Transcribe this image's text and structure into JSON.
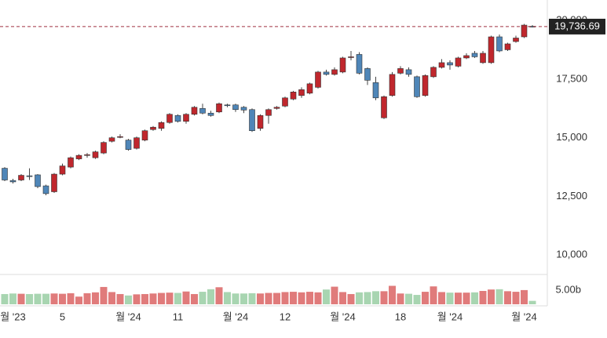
{
  "chart_data": {
    "type": "candlestick",
    "categories": [
      null,
      "월 '23",
      null,
      null,
      null,
      null,
      null,
      "5",
      null,
      null,
      null,
      null,
      null,
      null,
      null,
      "월 '24",
      null,
      null,
      null,
      null,
      null,
      "11",
      null,
      null,
      null,
      null,
      null,
      null,
      "월 '24",
      null,
      null,
      null,
      null,
      null,
      "12",
      null,
      null,
      null,
      null,
      null,
      null,
      "월 '24",
      null,
      null,
      null,
      null,
      null,
      null,
      "18",
      null,
      null,
      null,
      null,
      null,
      "월 '24",
      null,
      null,
      null,
      null,
      null,
      null,
      null,
      null,
      "월 '24",
      null
    ],
    "open": [
      13700,
      13180,
      13200,
      13380,
      13420,
      12950,
      12700,
      13450,
      13750,
      14100,
      14250,
      14150,
      14350,
      14850,
      15020,
      14900,
      14550,
      14900,
      15350,
      15400,
      15650,
      15950,
      15700,
      16000,
      16250,
      16050,
      16100,
      16400,
      16400,
      16300,
      16200,
      15400,
      15950,
      16250,
      16350,
      16650,
      16800,
      16900,
      17150,
      17800,
      17700,
      17800,
      18450,
      18550,
      17950,
      17350,
      15850,
      16800,
      17750,
      17900,
      17600,
      16800,
      17600,
      18000,
      18200,
      18050,
      18400,
      18600,
      18200,
      18200,
      19300,
      18750,
      19100,
      19300,
      19750
    ],
    "high": [
      13750,
      13250,
      13450,
      13700,
      13450,
      13000,
      13500,
      13900,
      14200,
      14300,
      14350,
      14450,
      14850,
      15050,
      15150,
      14950,
      15050,
      15350,
      15500,
      15700,
      16050,
      16000,
      16050,
      16350,
      16450,
      16150,
      16500,
      16450,
      16450,
      16350,
      16250,
      16000,
      16250,
      16350,
      16750,
      17000,
      17150,
      17350,
      17850,
      17900,
      18000,
      18450,
      18700,
      18650,
      18000,
      17600,
      16800,
      17800,
      18050,
      18000,
      17650,
      17700,
      18050,
      18350,
      18300,
      18450,
      18600,
      18700,
      18700,
      19350,
      19400,
      19050,
      19350,
      19850,
      19800
    ],
    "low": [
      13150,
      13050,
      13150,
      13200,
      12850,
      12550,
      12650,
      13400,
      13700,
      14050,
      14150,
      14100,
      14300,
      14800,
      14980,
      14450,
      14500,
      14850,
      15300,
      15300,
      15600,
      15650,
      15600,
      15950,
      16000,
      15900,
      16050,
      16300,
      16100,
      16050,
      15250,
      15300,
      15600,
      16200,
      16300,
      16600,
      16700,
      16850,
      17100,
      17650,
      17650,
      17750,
      18300,
      17700,
      17250,
      16600,
      15800,
      16750,
      17700,
      17600,
      16700,
      16750,
      17550,
      17950,
      17900,
      18000,
      18350,
      18400,
      18150,
      18150,
      18650,
      18700,
      19050,
      19250,
      19700
    ],
    "close": [
      13200,
      13120,
      13400,
      13350,
      12920,
      12620,
      13450,
      13800,
      14150,
      14250,
      14280,
      14400,
      14800,
      15000,
      15050,
      14500,
      15000,
      15300,
      15450,
      15650,
      16000,
      15700,
      16000,
      16300,
      16050,
      15950,
      16450,
      16380,
      16200,
      16180,
      15300,
      15950,
      16200,
      16300,
      16700,
      16950,
      17050,
      17300,
      17800,
      17700,
      17900,
      18400,
      18450,
      17750,
      17450,
      16700,
      16750,
      17700,
      17950,
      17700,
      16750,
      17650,
      18000,
      18200,
      18100,
      18400,
      18500,
      18450,
      18600,
      19300,
      18700,
      19000,
      19250,
      19800,
      19736.69
    ],
    "up_color": "#c0272d",
    "down_color": "#4f86b8",
    "ylim": [
      9175,
      20870
    ],
    "yticks": [
      {
        "value": 10000,
        "label": "10,000"
      },
      {
        "value": 12500,
        "label": "12,500"
      },
      {
        "value": 15000,
        "label": "15,000"
      },
      {
        "value": 17500,
        "label": "17,500"
      },
      {
        "value": 20000,
        "label": "20,000"
      }
    ],
    "grid": false,
    "last_price": {
      "value": 19736.69,
      "label": "19,736.69",
      "color": "#a03040"
    },
    "volume": {
      "values": [
        3.6,
        3.8,
        3.7,
        3.6,
        3.7,
        3.7,
        3.8,
        3.7,
        3.9,
        2.7,
        3.9,
        4.2,
        6.1,
        4.3,
        3.6,
        3.1,
        3.5,
        3.6,
        3.8,
        4.0,
        4.1,
        4.0,
        4.5,
        3.6,
        4.4,
        5.3,
        6.0,
        4.3,
        3.8,
        3.8,
        3.9,
        3.8,
        4.0,
        4.0,
        4.3,
        4.4,
        4.2,
        4.4,
        4.2,
        5.2,
        6.2,
        4.3,
        3.6,
        4.2,
        4.3,
        4.6,
        4.6,
        6.5,
        3.8,
        3.7,
        3.3,
        4.4,
        6.3,
        4.3,
        4.1,
        4.1,
        4.1,
        4.2,
        4.7,
        5.2,
        5.3,
        4.6,
        4.4,
        5.0,
        1.2
      ],
      "up_color": "#e07b7b",
      "down_color": "#a8d5b1",
      "ylim": [
        0,
        10.5
      ],
      "yticks": [
        {
          "value": 5,
          "label": "5.00b"
        }
      ]
    }
  }
}
